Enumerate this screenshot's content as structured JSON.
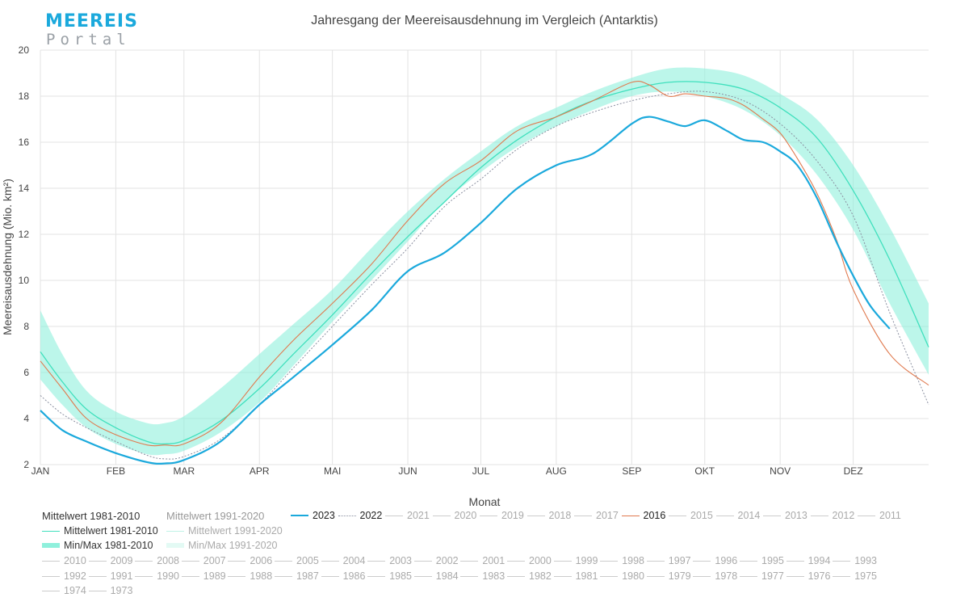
{
  "brand": {
    "top": "MEEREIS",
    "bottom": "Portal"
  },
  "colors": {
    "current": "#1ba9dc",
    "mean": "#3fe0bd",
    "band": "#8ff0dc",
    "y2016": "#e07a4f",
    "y2022": "#8a8fa0",
    "grid": "#e3e3e3"
  },
  "chart_data": {
    "type": "line",
    "title": "Jahresgang der Meereisausdehnung im Vergleich (Antarktis)",
    "xlabel": "Monat",
    "ylabel": "Meereisausdehnung (Mio. km²)",
    "ylim": [
      2,
      20
    ],
    "yticks": [
      2,
      4,
      6,
      8,
      10,
      12,
      14,
      16,
      18,
      20
    ],
    "xlim": [
      1,
      366
    ],
    "month_ticks": [
      {
        "label": "JAN",
        "day": 1
      },
      {
        "label": "FEB",
        "day": 32
      },
      {
        "label": "MAR",
        "day": 60
      },
      {
        "label": "APR",
        "day": 91
      },
      {
        "label": "MAI",
        "day": 121
      },
      {
        "label": "JUN",
        "day": 152
      },
      {
        "label": "JUL",
        "day": 182
      },
      {
        "label": "AUG",
        "day": 213
      },
      {
        "label": "SEP",
        "day": 244
      },
      {
        "label": "OKT",
        "day": 274
      },
      {
        "label": "NOV",
        "day": 305
      },
      {
        "label": "DEZ",
        "day": 335
      }
    ],
    "grid": true,
    "band": {
      "name": "Min/Max 1981-2010",
      "x": [
        1,
        10,
        20,
        32,
        45,
        52,
        60,
        75,
        91,
        105,
        121,
        137,
        152,
        167,
        182,
        197,
        213,
        228,
        244,
        259,
        274,
        290,
        305,
        320,
        335,
        350,
        366
      ],
      "upper": [
        8.7,
        6.8,
        5.2,
        4.3,
        3.8,
        3.8,
        4.1,
        5.3,
        6.8,
        8.1,
        9.6,
        11.4,
        13.0,
        14.4,
        15.6,
        16.7,
        17.5,
        18.2,
        18.8,
        19.2,
        19.2,
        18.9,
        18.1,
        17.0,
        15.0,
        12.3,
        9.0
      ],
      "lower": [
        5.7,
        4.6,
        3.6,
        2.9,
        2.45,
        2.45,
        2.6,
        3.4,
        4.7,
        6.3,
        8.2,
        10.0,
        11.7,
        13.4,
        14.7,
        15.8,
        16.7,
        17.4,
        18.0,
        18.2,
        18.0,
        17.4,
        16.3,
        14.6,
        12.2,
        9.0,
        5.9
      ]
    },
    "series": [
      {
        "name": "Mittelwert 1981-2010",
        "x": [
          1,
          10,
          20,
          32,
          45,
          52,
          60,
          75,
          91,
          105,
          121,
          137,
          152,
          167,
          182,
          197,
          213,
          228,
          244,
          259,
          274,
          290,
          305,
          320,
          335,
          350,
          366
        ],
        "values": [
          6.9,
          5.6,
          4.4,
          3.6,
          3.0,
          2.9,
          3.05,
          3.9,
          5.3,
          6.8,
          8.5,
          10.3,
          11.9,
          13.4,
          14.9,
          16.1,
          17.1,
          17.8,
          18.3,
          18.6,
          18.6,
          18.3,
          17.5,
          16.2,
          13.9,
          10.9,
          7.1
        ]
      },
      {
        "name": "2023",
        "x": [
          1,
          10,
          20,
          32,
          45,
          52,
          60,
          75,
          91,
          105,
          121,
          137,
          152,
          167,
          182,
          197,
          213,
          228,
          244,
          251,
          259,
          266,
          274,
          283,
          290,
          298,
          305,
          312,
          320,
          328,
          335,
          342,
          350
        ],
        "values": [
          4.35,
          3.5,
          3.0,
          2.5,
          2.1,
          2.05,
          2.2,
          3.0,
          4.6,
          5.8,
          7.2,
          8.7,
          10.4,
          11.2,
          12.5,
          14.0,
          15.0,
          15.5,
          16.8,
          17.1,
          16.9,
          16.7,
          16.95,
          16.5,
          16.1,
          16.0,
          15.6,
          15.0,
          13.6,
          11.7,
          10.2,
          8.9,
          7.9
        ]
      },
      {
        "name": "2016",
        "x": [
          1,
          10,
          20,
          32,
          45,
          52,
          60,
          75,
          91,
          105,
          121,
          137,
          152,
          167,
          182,
          197,
          213,
          228,
          244,
          251,
          259,
          266,
          274,
          283,
          290,
          298,
          305,
          312,
          320,
          328,
          335,
          350,
          366
        ],
        "values": [
          6.5,
          5.3,
          4.0,
          3.3,
          2.85,
          2.85,
          2.9,
          3.8,
          5.8,
          7.4,
          9.0,
          10.7,
          12.6,
          14.2,
          15.2,
          16.5,
          17.1,
          17.8,
          18.6,
          18.5,
          18.0,
          18.1,
          18.0,
          17.9,
          17.6,
          17.0,
          16.4,
          15.3,
          13.8,
          11.8,
          9.6,
          6.8,
          5.45
        ]
      },
      {
        "name": "2022",
        "x": [
          1,
          10,
          20,
          32,
          45,
          52,
          60,
          75,
          91,
          105,
          121,
          137,
          152,
          167,
          182,
          197,
          213,
          228,
          244,
          259,
          274,
          290,
          305,
          320,
          335,
          350,
          366
        ],
        "values": [
          5.0,
          4.2,
          3.6,
          3.0,
          2.4,
          2.25,
          2.35,
          3.1,
          4.6,
          6.2,
          8.0,
          9.8,
          11.4,
          13.2,
          14.4,
          15.7,
          16.7,
          17.3,
          17.8,
          18.1,
          18.2,
          17.8,
          16.8,
          15.2,
          12.8,
          8.6,
          4.6
        ]
      }
    ]
  },
  "legend": {
    "group1_title": "Mittelwert 1981-2010",
    "group1_items": [
      "Mittelwert 1981-2010",
      "Min/Max 1981-2010"
    ],
    "group2_title": "Mittelwert 1991-2020",
    "group2_items": [
      "Mittelwert 1991-2020",
      "Min/Max 1991-2020"
    ],
    "years_row1": [
      "2023",
      "2022",
      "2021",
      "2020",
      "2019",
      "2018",
      "2017",
      "2016",
      "2015",
      "2014",
      "2013",
      "2012",
      "2011"
    ],
    "years_row2": [
      "2010",
      "2009",
      "2008",
      "2007",
      "2006",
      "2005",
      "2004",
      "2003",
      "2002",
      "2001",
      "2000",
      "1999",
      "1998",
      "1997",
      "1996",
      "1995",
      "1994",
      "1993"
    ],
    "years_row3": [
      "1992",
      "1991",
      "1990",
      "1989",
      "1988",
      "1987",
      "1986",
      "1985",
      "1984",
      "1983",
      "1982",
      "1981",
      "1980",
      "1979",
      "1978",
      "1977",
      "1976",
      "1975"
    ],
    "years_row4": [
      "1974",
      "1973"
    ]
  }
}
